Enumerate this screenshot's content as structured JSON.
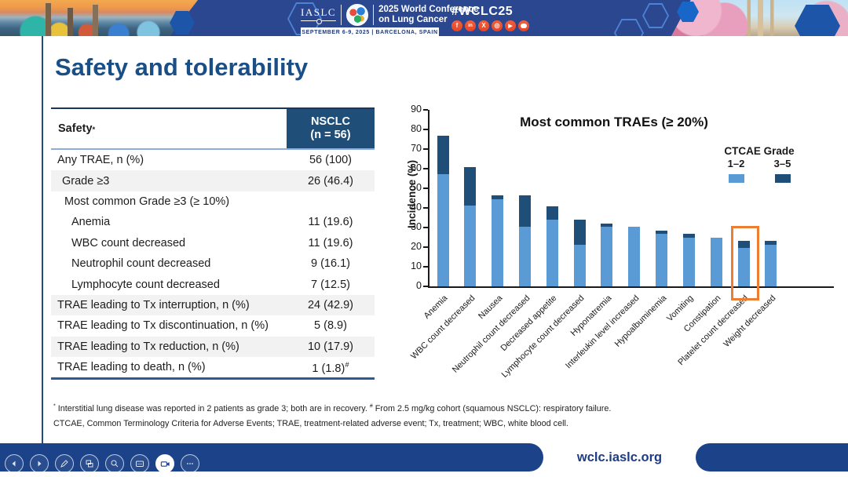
{
  "header": {
    "iaslc_label": "IASLC",
    "conference_line1": "2025 World Conference",
    "conference_line2": "on Lung Cancer",
    "date_venue": "SEPTEMBER 6-9, 2025  |  BARCELONA, SPAIN",
    "hashtag": "#WCLC25",
    "social": [
      {
        "name": "facebook-icon",
        "glyph": "f"
      },
      {
        "name": "linkedin-icon",
        "glyph": "in"
      },
      {
        "name": "x-icon",
        "glyph": "X"
      },
      {
        "name": "instagram-icon",
        "glyph": "◎"
      },
      {
        "name": "youtube-icon",
        "glyph": "▶"
      },
      {
        "name": "chat-icon",
        "glyph": ""
      }
    ],
    "banner_color": "#2a478f"
  },
  "title": "Safety and tolerability",
  "table": {
    "col1_header": "Safety",
    "col1_header_sup": "*",
    "col2_header_line1": "NSCLC",
    "col2_header_line2": "(n = 56)",
    "rows": [
      {
        "label": "Any TRAE, n (%)",
        "value": "56 (100)"
      },
      {
        "label": "Grade ≥3",
        "value": "26 (46.4)"
      },
      {
        "label": "Most common Grade ≥3 (≥ 10%)",
        "value": ""
      },
      {
        "label": "Anemia",
        "value": "11 (19.6)"
      },
      {
        "label": "WBC count decreased",
        "value": "11 (19.6)"
      },
      {
        "label": "Neutrophil count decreased",
        "value": "9 (16.1)"
      },
      {
        "label": "Lymphocyte count decreased",
        "value": "7 (12.5)"
      },
      {
        "label": "TRAE leading to Tx interruption, n (%)",
        "value": "24 (42.9)"
      },
      {
        "label": "TRAE leading to Tx discontinuation, n (%)",
        "value": "5 (8.9)"
      },
      {
        "label": "TRAE leading to Tx reduction, n (%)",
        "value": "10 (17.9)"
      },
      {
        "label": "TRAE leading to death, n (%)",
        "value": "1 (1.8)",
        "value_sup": "#"
      }
    ]
  },
  "chart_data": {
    "type": "bar",
    "stacked": true,
    "title": "Most common TRAEs (≥ 20%)",
    "ylabel": "Incidence (%)",
    "ylim": [
      0,
      90
    ],
    "ytick_step": 10,
    "grid": false,
    "legend_title": "CTCAE Grade",
    "legend_position": "upper right",
    "categories": [
      "Anemia",
      "WBC count decreased",
      "Nausea",
      "Neutrophil count decreased",
      "Decreased appetite",
      "Lymphocyte count decreased",
      "Hyponatremia",
      "Interleukin level increased",
      "Hypoalbuminemia",
      "Vomiting",
      "Constipation",
      "Platelet count decreased",
      "Weight decreased"
    ],
    "series": [
      {
        "name": "1–2",
        "color": "#5b9bd5",
        "values": [
          57.1,
          41.1,
          44.6,
          30.4,
          33.9,
          21.4,
          30.4,
          30.4,
          26.8,
          25.0,
          25.0,
          19.6,
          21.4
        ]
      },
      {
        "name": "3–5",
        "color": "#1f4e79",
        "values": [
          19.6,
          19.6,
          1.8,
          16.1,
          7.1,
          12.5,
          1.8,
          0,
          1.8,
          1.8,
          0,
          3.6,
          1.8
        ]
      }
    ],
    "highlight": {
      "category": "Platelet count decreased",
      "index": 11,
      "color": "#ed7d31"
    }
  },
  "footnotes": {
    "sup1": "*",
    "line1a": " Interstitial lung disease was reported in 2 patients as grade 3; both are in recovery. ",
    "sup2": "#",
    "line1b": " From 2.5 mg/kg cohort (squamous NSCLC): respiratory failure.",
    "line2": "CTCAE, Common Terminology Criteria for Adverse Events; TRAE, treatment-related adverse event; Tx, treatment; WBC, white blood cell."
  },
  "footer": {
    "url": "wclc.iaslc.org",
    "toolbar_icons": [
      "previous-icon",
      "next-icon",
      "pen-icon",
      "slides-icon",
      "zoom-icon",
      "captions-icon",
      "camera-icon",
      "more-icon"
    ]
  }
}
